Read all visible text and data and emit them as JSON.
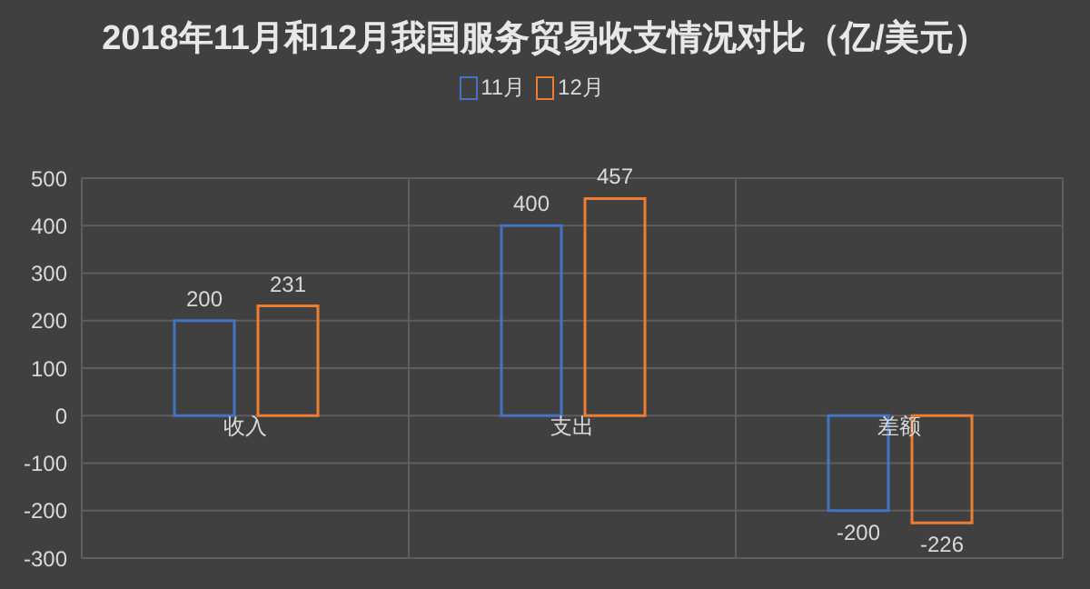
{
  "chart_data": {
    "type": "bar",
    "title": "2018年11月和12月我国服务贸易收支情况对比（亿/美元）",
    "categories": [
      "收入",
      "支出",
      "差额"
    ],
    "series": [
      {
        "name": "11月",
        "color": "#4472c4",
        "values": [
          200,
          400,
          -200
        ]
      },
      {
        "name": "12月",
        "color": "#ed7d31",
        "values": [
          231,
          457,
          -226
        ]
      }
    ],
    "ylim": [
      -300,
      500
    ],
    "yticks": [
      -300,
      -200,
      -100,
      0,
      100,
      200,
      300,
      400,
      500
    ],
    "grid": true,
    "legend": "top",
    "data_labels": true
  }
}
